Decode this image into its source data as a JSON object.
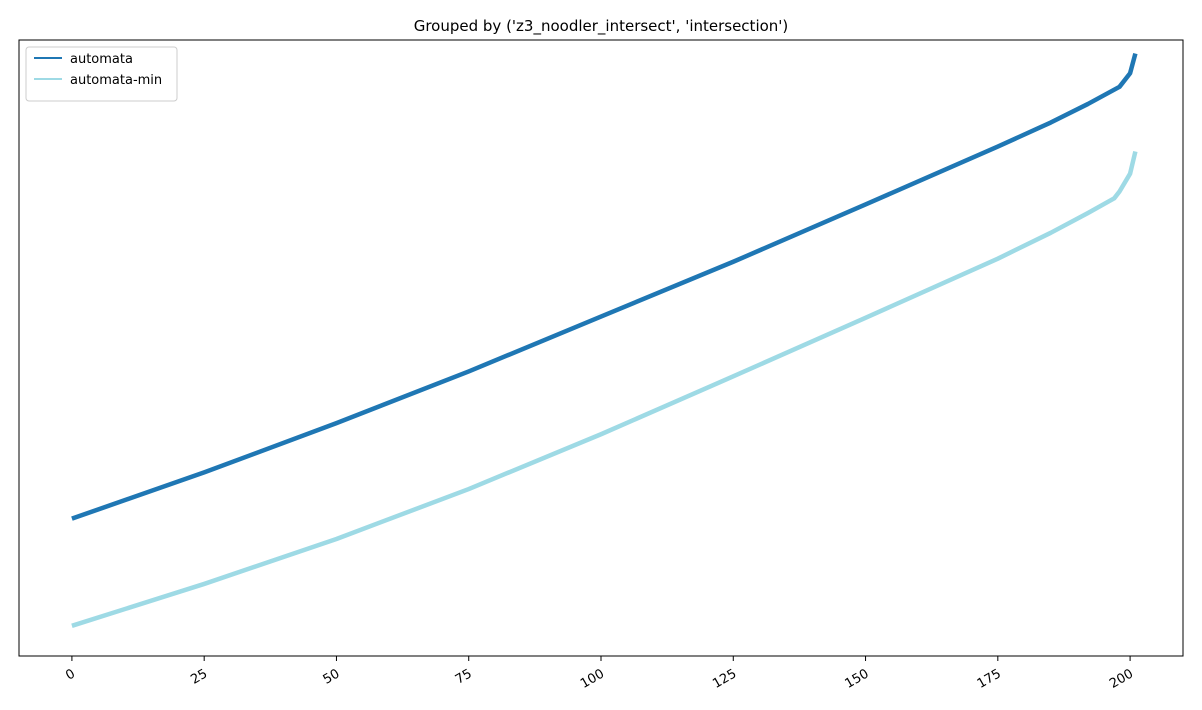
{
  "chart_data": {
    "type": "line",
    "title": "Grouped by ('z3_noodler_intersect', 'intersection')",
    "xlabel": "",
    "ylabel": "",
    "xlim": [
      -10,
      210
    ],
    "ylim": [
      0,
      100
    ],
    "x_ticks": [
      0,
      25,
      50,
      75,
      100,
      125,
      150,
      175,
      200
    ],
    "x_tick_labels": [
      "0",
      "25",
      "50",
      "75",
      "100",
      "125",
      "150",
      "175",
      "200"
    ],
    "y_ticks_visible": false,
    "grid": false,
    "legend": {
      "placement": "top-left"
    },
    "series": [
      {
        "name": "automata",
        "color": "#1f77b4",
        "x": [
          0,
          25,
          50,
          75,
          100,
          125,
          150,
          175,
          185,
          192,
          198,
          200,
          201
        ],
        "y": [
          22.3,
          29.8,
          37.8,
          46.2,
          55.1,
          64.0,
          73.3,
          82.7,
          86.6,
          89.6,
          92.4,
          94.6,
          97.8
        ]
      },
      {
        "name": "automata-min",
        "color": "#9edae5",
        "x": [
          0,
          25,
          50,
          75,
          100,
          125,
          150,
          175,
          185,
          192,
          197,
          198,
          200,
          201
        ],
        "y": [
          4.9,
          11.7,
          19.0,
          27.1,
          36.0,
          45.4,
          54.9,
          64.5,
          68.7,
          71.9,
          74.3,
          75.4,
          78.3,
          81.9
        ]
      }
    ]
  }
}
